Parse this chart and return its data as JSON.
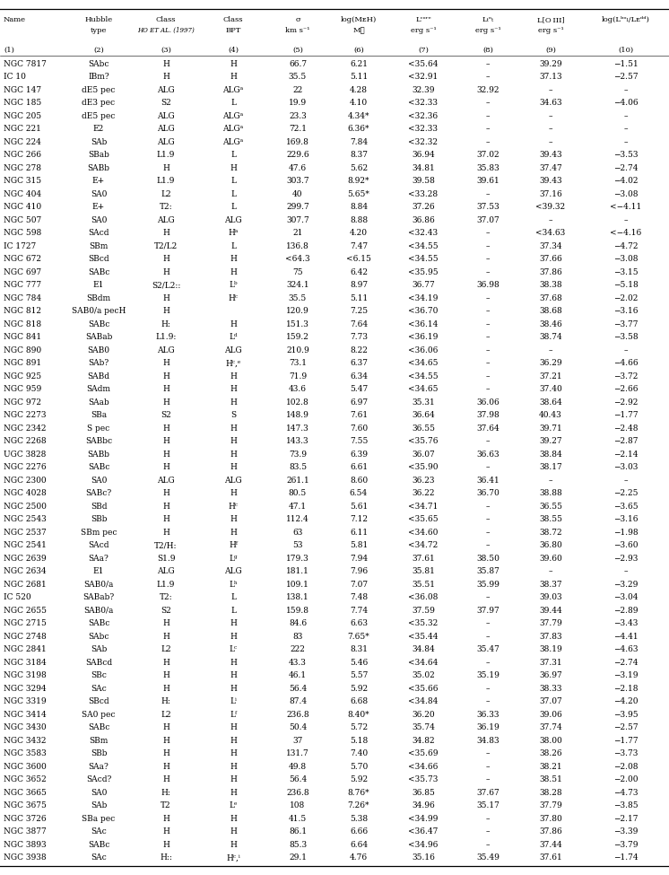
{
  "rows": [
    [
      "NGC 7817",
      "SAbc",
      "H",
      "H",
      "66.7",
      "6.21",
      "<35.64",
      "–",
      "39.29",
      "−1.51"
    ],
    [
      "IC 10",
      "IBm?",
      "H",
      "H",
      "35.5",
      "5.11",
      "<32.91",
      "–",
      "37.13",
      "−2.57"
    ],
    [
      "NGC 147",
      "dE5 pec",
      "ALG",
      "ALGᵃ",
      "22",
      "4.28",
      "32.39",
      "32.92",
      "–",
      "–"
    ],
    [
      "NGC 185",
      "dE3 pec",
      "S2",
      "L",
      "19.9",
      "4.10",
      "<32.33",
      "–",
      "34.63",
      "−4.06"
    ],
    [
      "NGC 205",
      "dE5 pec",
      "ALG",
      "ALGᵃ",
      "23.3",
      "4.34*",
      "<32.36",
      "–",
      "–",
      "–"
    ],
    [
      "NGC 221",
      "E2",
      "ALG",
      "ALGᵃ",
      "72.1",
      "6.36*",
      "<32.33",
      "–",
      "–",
      "–"
    ],
    [
      "NGC 224",
      "SAb",
      "ALG",
      "ALGᵃ",
      "169.8",
      "7.84",
      "<32.32",
      "–",
      "–",
      "–"
    ],
    [
      "NGC 266",
      "SBab",
      "L1.9",
      "L",
      "229.6",
      "8.37",
      "36.94",
      "37.02",
      "39.43",
      "−3.53"
    ],
    [
      "NGC 278",
      "SABb",
      "H",
      "H",
      "47.6",
      "5.62",
      "34.81",
      "35.83",
      "37.47",
      "−2.74"
    ],
    [
      "NGC 315",
      "E+",
      "L1.9",
      "L",
      "303.7",
      "8.92*",
      "39.58",
      "39.61",
      "39.43",
      "−4.02"
    ],
    [
      "NGC 404",
      "SA0",
      "L2",
      "L",
      "40",
      "5.65*",
      "<33.28",
      "–",
      "37.16",
      "−3.08"
    ],
    [
      "NGC 410",
      "E+",
      "T2:",
      "L",
      "299.7",
      "8.84",
      "37.26",
      "37.53",
      "<39.32",
      "<−4.11"
    ],
    [
      "NGC 507",
      "SA0",
      "ALG",
      "ALG",
      "307.7",
      "8.88",
      "36.86",
      "37.07",
      "–",
      "–"
    ],
    [
      "NGC 598",
      "SAcd",
      "H",
      "Hᵃ",
      "21",
      "4.20",
      "<32.43",
      "–",
      "<34.63",
      "<−4.16"
    ],
    [
      "IC 1727",
      "SBm",
      "T2/L2",
      "L",
      "136.8",
      "7.47",
      "<34.55",
      "–",
      "37.34",
      "−4.72"
    ],
    [
      "NGC 672",
      "SBcd",
      "H",
      "H",
      "<64.3",
      "<6.15",
      "<34.55",
      "–",
      "37.66",
      "−3.08"
    ],
    [
      "NGC 697",
      "SABc",
      "H",
      "H",
      "75",
      "6.42",
      "<35.95",
      "–",
      "37.86",
      "−3.15"
    ],
    [
      "NGC 777",
      "E1",
      "S2/L2::",
      "Lᵇ",
      "324.1",
      "8.97",
      "36.77",
      "36.98",
      "38.38",
      "−5.18"
    ],
    [
      "NGC 784",
      "SBdm",
      "H",
      "Hᶜ",
      "35.5",
      "5.11",
      "<34.19",
      "–",
      "37.68",
      "−2.02"
    ],
    [
      "NGC 812",
      "SAB0/a pecH",
      "H",
      "",
      "120.9",
      "7.25",
      "<36.70",
      "–",
      "38.68",
      "−3.16"
    ],
    [
      "NGC 818",
      "SABc",
      "H:",
      "H",
      "151.3",
      "7.64",
      "<36.14",
      "–",
      "38.46",
      "−3.77"
    ],
    [
      "NGC 841",
      "SABab",
      "L1.9:",
      "Lᵈ",
      "159.2",
      "7.73",
      "<36.19",
      "–",
      "38.74",
      "−3.58"
    ],
    [
      "NGC 890",
      "SAB0",
      "ALG",
      "ALG",
      "210.9",
      "8.22",
      "<36.06",
      "–",
      "–",
      "–"
    ],
    [
      "NGC 891",
      "SAb?",
      "H",
      "Hᶜ,ᵉ",
      "73.1",
      "6.37",
      "<34.65",
      "–",
      "36.29",
      "−4.66"
    ],
    [
      "NGC 925",
      "SABd",
      "H",
      "H",
      "71.9",
      "6.34",
      "<34.55",
      "–",
      "37.21",
      "−3.72"
    ],
    [
      "NGC 959",
      "SAdm",
      "H",
      "H",
      "43.6",
      "5.47",
      "<34.65",
      "–",
      "37.40",
      "−2.66"
    ],
    [
      "NGC 972",
      "SAab",
      "H",
      "H",
      "102.8",
      "6.97",
      "35.31",
      "36.06",
      "38.64",
      "−2.92"
    ],
    [
      "NGC 2273",
      "SBa",
      "S2",
      "S",
      "148.9",
      "7.61",
      "36.64",
      "37.98",
      "40.43",
      "−1.77"
    ],
    [
      "NGC 2342",
      "S pec",
      "H",
      "H",
      "147.3",
      "7.60",
      "36.55",
      "37.64",
      "39.71",
      "−2.48"
    ],
    [
      "NGC 2268",
      "SABbc",
      "H",
      "H",
      "143.3",
      "7.55",
      "<35.76",
      "–",
      "39.27",
      "−2.87"
    ],
    [
      "UGC 3828",
      "SABb",
      "H",
      "H",
      "73.9",
      "6.39",
      "36.07",
      "36.63",
      "38.84",
      "−2.14"
    ],
    [
      "NGC 2276",
      "SABc",
      "H",
      "H",
      "83.5",
      "6.61",
      "<35.90",
      "–",
      "38.17",
      "−3.03"
    ],
    [
      "NGC 2300",
      "SA0",
      "ALG",
      "ALG",
      "261.1",
      "8.60",
      "36.23",
      "36.41",
      "–",
      "–"
    ],
    [
      "NGC 4028",
      "SABc?",
      "H",
      "H",
      "80.5",
      "6.54",
      "36.22",
      "36.70",
      "38.88",
      "−2.25"
    ],
    [
      "NGC 2500",
      "SBd",
      "H",
      "Hᶜ",
      "47.1",
      "5.61",
      "<34.71",
      "–",
      "36.55",
      "−3.65"
    ],
    [
      "NGC 2543",
      "SBb",
      "H",
      "H",
      "112.4",
      "7.12",
      "<35.65",
      "–",
      "38.55",
      "−3.16"
    ],
    [
      "NGC 2537",
      "SBm pec",
      "H",
      "H",
      "63",
      "6.11",
      "<34.60",
      "–",
      "38.72",
      "−1.98"
    ],
    [
      "NGC 2541",
      "SAcd",
      "T2/H:",
      "Hᶠ",
      "53",
      "5.81",
      "<34.72",
      "–",
      "36.80",
      "−3.60"
    ],
    [
      "NGC 2639",
      "SAa?",
      "S1.9",
      "Lᵍ",
      "179.3",
      "7.94",
      "37.61",
      "38.50",
      "39.60",
      "−2.93"
    ],
    [
      "NGC 2634",
      "E1",
      "ALG",
      "ALG",
      "181.1",
      "7.96",
      "35.81",
      "35.87",
      "–",
      "–"
    ],
    [
      "NGC 2681",
      "SAB0/a",
      "L1.9",
      "Lʰ",
      "109.1",
      "7.07",
      "35.51",
      "35.99",
      "38.37",
      "−3.29"
    ],
    [
      "IC 520",
      "SABab?",
      "T2:",
      "L",
      "138.1",
      "7.48",
      "<36.08",
      "–",
      "39.03",
      "−3.04"
    ],
    [
      "NGC 2655",
      "SAB0/a",
      "S2",
      "L",
      "159.8",
      "7.74",
      "37.59",
      "37.97",
      "39.44",
      "−2.89"
    ],
    [
      "NGC 2715",
      "SABc",
      "H",
      "H",
      "84.6",
      "6.63",
      "<35.32",
      "–",
      "37.79",
      "−3.43"
    ],
    [
      "NGC 2748",
      "SAbc",
      "H",
      "H",
      "83",
      "7.65*",
      "<35.44",
      "–",
      "37.83",
      "−4.41"
    ],
    [
      "NGC 2841",
      "SAb",
      "L2",
      "Lᶜ",
      "222",
      "8.31",
      "34.84",
      "35.47",
      "38.19",
      "−4.63"
    ],
    [
      "NGC 3184",
      "SABcd",
      "H",
      "H",
      "43.3",
      "5.46",
      "<34.64",
      "–",
      "37.31",
      "−2.74"
    ],
    [
      "NGC 3198",
      "SBc",
      "H",
      "H",
      "46.1",
      "5.57",
      "35.02",
      "35.19",
      "36.97",
      "−3.19"
    ],
    [
      "NGC 3294",
      "SAc",
      "H",
      "H",
      "56.4",
      "5.92",
      "<35.66",
      "–",
      "38.33",
      "−2.18"
    ],
    [
      "NGC 3319",
      "SBcd",
      "H:",
      "Lⁱ",
      "87.4",
      "6.68",
      "<34.84",
      "–",
      "37.07",
      "−4.20"
    ],
    [
      "NGC 3414",
      "SA0 pec",
      "L2",
      "Lᶠ",
      "236.8",
      "8.40*",
      "36.20",
      "36.33",
      "39.06",
      "−3.95"
    ],
    [
      "NGC 3430",
      "SABc",
      "H",
      "H",
      "50.4",
      "5.72",
      "35.74",
      "36.19",
      "37.74",
      "−2.57"
    ],
    [
      "NGC 3432",
      "SBm",
      "H",
      "H",
      "37",
      "5.18",
      "34.82",
      "34.83",
      "38.00",
      "−1.77"
    ],
    [
      "NGC 3583",
      "SBb",
      "H",
      "H",
      "131.7",
      "7.40",
      "<35.69",
      "–",
      "38.26",
      "−3.73"
    ],
    [
      "NGC 3600",
      "SAa?",
      "H",
      "H",
      "49.8",
      "5.70",
      "<34.66",
      "–",
      "38.21",
      "−2.08"
    ],
    [
      "NGC 3652",
      "SAcd?",
      "H",
      "H",
      "56.4",
      "5.92",
      "<35.73",
      "–",
      "38.51",
      "−2.00"
    ],
    [
      "NGC 3665",
      "SA0",
      "H:",
      "H",
      "236.8",
      "8.76*",
      "36.85",
      "37.67",
      "38.28",
      "−4.73"
    ],
    [
      "NGC 3675",
      "SAb",
      "T2",
      "Lᵉ",
      "108",
      "7.26*",
      "34.96",
      "35.17",
      "37.79",
      "−3.85"
    ],
    [
      "NGC 3726",
      "SBa pec",
      "H",
      "H",
      "41.5",
      "5.38",
      "<34.99",
      "–",
      "37.80",
      "−2.17"
    ],
    [
      "NGC 3877",
      "SAc",
      "H",
      "H",
      "86.1",
      "6.66",
      "<36.47",
      "–",
      "37.86",
      "−3.39"
    ],
    [
      "NGC 3893",
      "SABc",
      "H",
      "H",
      "85.3",
      "6.64",
      "<34.96",
      "–",
      "37.44",
      "−3.79"
    ],
    [
      "NGC 3938",
      "SAc",
      "H::",
      "Hᶜ,ⁱ",
      "29.1",
      "4.76",
      "35.16",
      "35.49",
      "37.61",
      "−1.74"
    ]
  ],
  "background_color": "#ffffff",
  "text_color": "#000000",
  "line_color": "#000000"
}
